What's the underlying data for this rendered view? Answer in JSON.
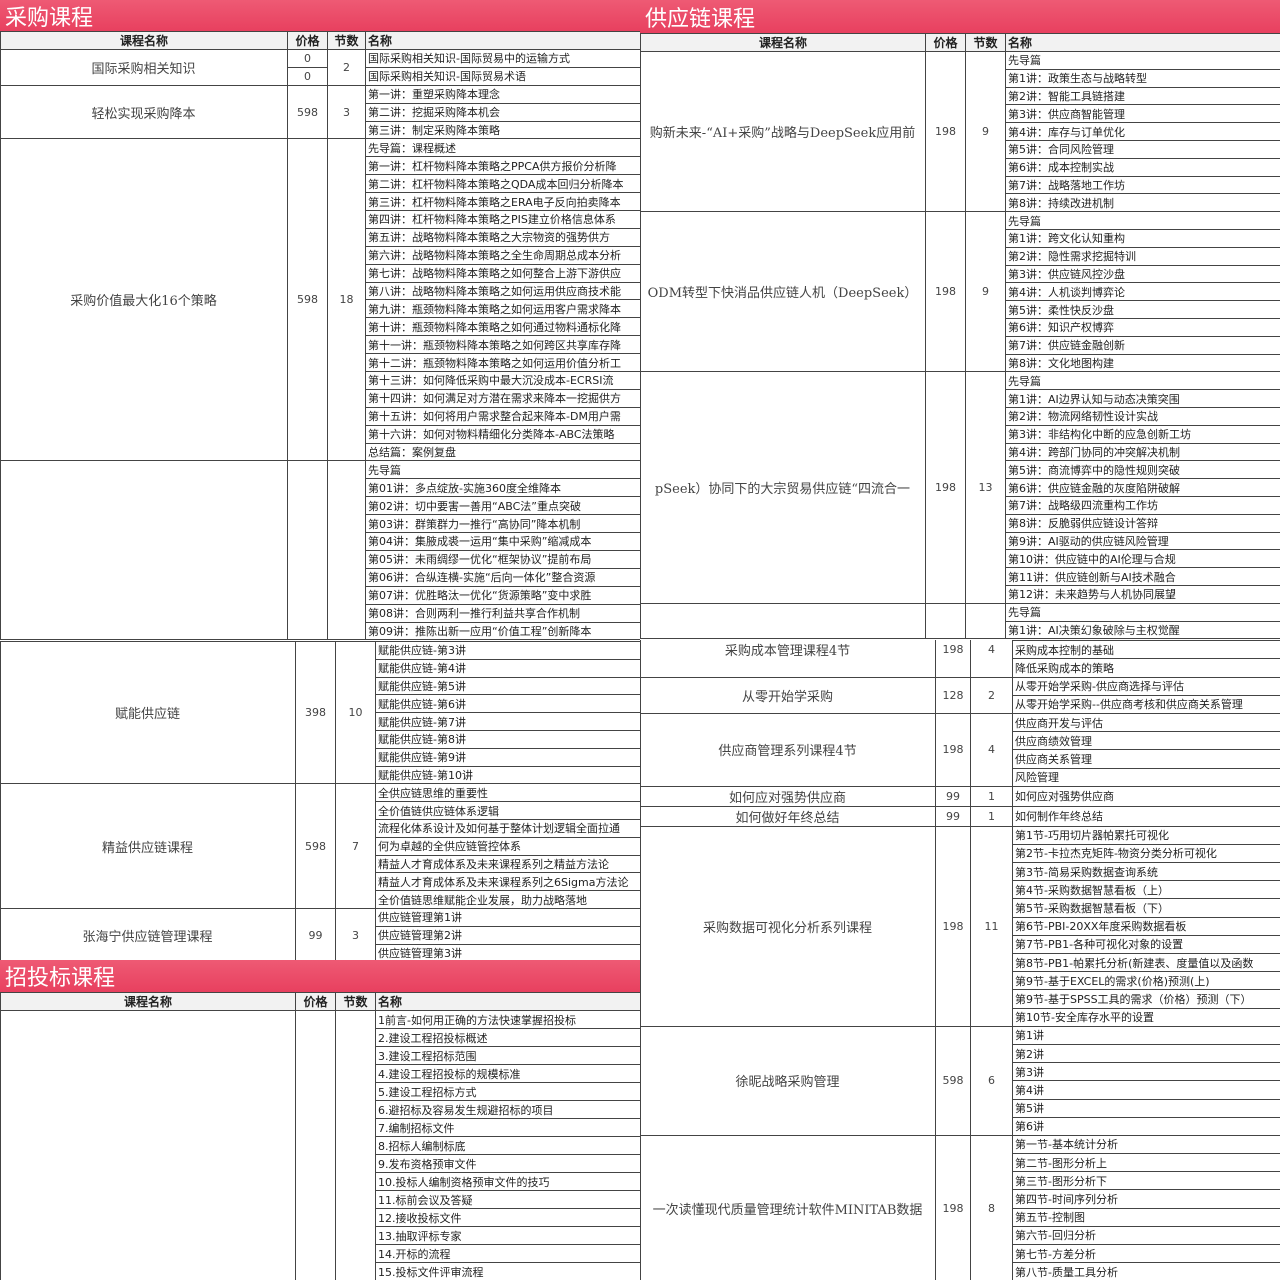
{
  "colors": {
    "title_bar": "#e94a64",
    "title_text": "#ffffff",
    "border": "#444444"
  },
  "headers": {
    "name": "课程名称",
    "price": "价格",
    "count": "节数",
    "title": "名称"
  },
  "panels": {
    "procurement": {
      "title": "采购课程",
      "groups": [
        {
          "name": "国际采购相关知识",
          "prices": [
            "0",
            "0"
          ],
          "count": "2",
          "items": [
            "国际采购相关知识-国际贸易中的运输方式",
            "国际采购相关知识-国际贸易术语"
          ]
        },
        {
          "name": "轻松实现采购降本",
          "price": "598",
          "count": "3",
          "items": [
            "第一讲：重塑采购降本理念",
            "第二讲：挖掘采购降本机会",
            "第三讲：制定采购降本策略"
          ]
        },
        {
          "name": "采购价值最大化16个策略",
          "price": "598",
          "count": "18",
          "items": [
            "先导篇：课程概述",
            "第一讲：杠杆物料降本策略之PPCA供方报价分析降",
            "第二讲：杠杆物料降本策略之QDA成本回归分析降本",
            "第三讲：杠杆物料降本策略之ERA电子反向拍卖降本",
            "第四讲：杠杆物料降本策略之PIS建立价格信息体系",
            "第五讲：战略物料降本策略之大宗物资的强势供方",
            "第六讲：战略物料降本策略之全生命周期总成本分析",
            "第七讲：战略物料降本策略之如何整合上游下游供应",
            "第八讲：战略物料降本策略之如何运用供应商技术能",
            "第九讲：瓶颈物料降本策略之如何运用客户需求降本",
            "第十讲：瓶颈物料降本策略之如何通过物料通标化降",
            "第十一讲：瓶颈物料降本策略之如何跨区共享库存降",
            "第十二讲：瓶颈物料降本策略之如何运用价值分析工",
            "第十三讲：如何降低采购中最大沉没成本-ECRSI流",
            "第十四讲：如何满足对方潜在需求来降本一挖掘供方",
            "第十五讲：如何将用户需求整合起来降本-DM用户需",
            "第十六讲：如何对物料精细化分类降本-ABC法策略",
            "总结篇：案例复盘"
          ]
        },
        {
          "name": "",
          "price": "",
          "count": "",
          "items": [
            "先导篇",
            "第01讲：多点绽放-实施360度全维降本",
            "第02讲：切中要害一善用“ABC法”重点突破",
            "第03讲：群策群力一推行“高协同”降本机制",
            "第04讲：集腋成裘一运用“集中采购”缩减成本",
            "第05讲：未雨绸缪一优化“框架协议”提前布局",
            "第06讲：合纵连横-实施“后向一体化”整合资源",
            "第07讲：优胜略汰一优化“货源策略”变中求胜",
            "第08讲：合则两利一推行利益共享合作机制",
            "第09讲：推陈出新一应用“价值工程”创新降本"
          ]
        }
      ]
    },
    "supply_chain": {
      "title": "供应链课程",
      "groups": [
        {
          "name": "购新未来-“AI+采购”战略与DeepSeek应用前",
          "price": "198",
          "count": "9",
          "items": [
            "先导篇",
            "第1讲：政策生态与战略转型",
            "第2讲：智能工具链搭建",
            "第3讲：供应商智能管理",
            "第4讲：库存与订单优化",
            "第5讲：合同风险管理",
            "第6讲：成本控制实战",
            "第7讲：战略落地工作坊",
            "第8讲：持续改进机制"
          ]
        },
        {
          "name": "ODM转型下快消品供应链人机（DeepSeek）",
          "price": "198",
          "count": "9",
          "items": [
            "先导篇",
            "第1讲：跨文化认知重构",
            "第2讲：隐性需求挖掘特训",
            "第3讲：供应链风控沙盘",
            "第4讲：人机谈判博弈论",
            "第5讲：柔性快反沙盘",
            "第6讲：知识产权博弈",
            "第7讲：供应链金融创新",
            "第8讲：文化地图构建"
          ]
        },
        {
          "name": "pSeek）协同下的大宗贸易供应链“四流合一",
          "price": "198",
          "count": "13",
          "items": [
            "先导篇",
            "第1讲：AI边界认知与动态决策突围",
            "第2讲：物流网络韧性设计实战",
            "第3讲：非结构化中断的应急创新工坊",
            "第4讲：跨部门协同的冲突解决机制",
            "第5讲：商流博弈中的隐性规则突破",
            "第6讲：供应链金融的灰度陷阱破解",
            "第7讲：战略级四流重构工作坊",
            "第8讲：反脆弱供应链设计答辩",
            "第9讲：AI驱动的供应链风险管理",
            "第10讲：供应链中的AI伦理与合规",
            "第11讲：供应链创新与AI技术融合",
            "第12讲：未来趋势与人机协同展望"
          ]
        },
        {
          "name": "",
          "price": "",
          "count": "",
          "items": [
            "先导篇",
            "第1讲：AI决策幻象破除与主权觉醒"
          ]
        }
      ]
    },
    "supply_chain_cont": {
      "groups": [
        {
          "name": "赋能供应链",
          "price": "398",
          "count": "10",
          "items": [
            "赋能供应链-第3讲",
            "赋能供应链-第4讲",
            "赋能供应链-第5讲",
            "赋能供应链-第6讲",
            "赋能供应链-第7讲",
            "赋能供应链-第8讲",
            "赋能供应链-第9讲",
            "赋能供应链-第10讲"
          ]
        },
        {
          "name": "精益供应链课程",
          "price": "598",
          "count": "7",
          "items": [
            "全供应链思维的重要性",
            "全价值链供应链体系逻辑",
            "流程化体系设计及如何基于整体计划逻辑全面拉通",
            "何为卓越的全供应链管控体系",
            "精益人才育成体系及未来课程系列之精益方法论",
            "精益人才育成体系及未来课程系列之6Sigma方法论",
            "全价值链思维赋能企业发展，助力战略落地"
          ]
        },
        {
          "name": "张海宁供应链管理课程",
          "price": "99",
          "count": "3",
          "items": [
            "供应链管理第1讲",
            "供应链管理第2讲",
            "供应链管理第3讲"
          ]
        }
      ]
    },
    "bidding": {
      "title": "招投标课程",
      "groups": [
        {
          "name": "",
          "price": "",
          "count": "",
          "items": [
            "1前言-如何用正确的方法快速掌握招投标",
            "2.建设工程招投标概述",
            "3.建设工程招标范围",
            "4.建设工程招投标的规模标准",
            "5.建设工程招标方式",
            "6.避招标及容易发生规避招标的项目",
            "7.编制招标文件",
            "8.招标人编制标底",
            "9.发布资格预审文件",
            "10.投标人编制资格预审文件的技巧",
            "11.标前会议及答疑",
            "12.接收投标文件",
            "13.抽取评标专家",
            "14.开标的流程",
            "15.投标文件评审流程"
          ]
        }
      ]
    },
    "procurement_cont": {
      "groups": [
        {
          "name": "采购成本管理课程4节",
          "price": "198",
          "count": "4",
          "items": [
            "第1讲：AI决策幻象破除与主权觉醒",
            "采购成本控制的基础",
            "降低采购成本的策略"
          ]
        },
        {
          "name": "从零开始学采购",
          "price": "128",
          "count": "2",
          "items": [
            "从零开始学采购-供应商选择与评估",
            "从零开始学采购--供应商考核和供应商关系管理"
          ]
        },
        {
          "name": "供应商管理系列课程4节",
          "price": "198",
          "count": "4",
          "items": [
            "供应商开发与评估",
            "供应商绩效管理",
            "供应商关系管理",
            "风险管理"
          ]
        },
        {
          "name": "如何应对强势供应商",
          "price": "99",
          "count": "1",
          "items": [
            "如何应对强势供应商"
          ]
        },
        {
          "name": "如何做好年终总结",
          "price": "99",
          "count": "1",
          "items": [
            "如何制作年终总结"
          ]
        },
        {
          "name": "采购数据可视化分析系列课程",
          "price": "198",
          "count": "11",
          "items": [
            "第1节-巧用切片器帕累托可视化",
            "第2节-卡拉杰克矩阵-物资分类分析可视化",
            "第3节-简易采购数据查询系统",
            "第4节-采购数据智慧看板（上）",
            "第5节-采购数据智慧看板（下）",
            "第6节-PBI-20XX年度采购数据看板",
            "第7节-PB1-各种可视化对象的设置",
            "第8节-PB1-帕累托分析(新建表、度量值以及函数",
            "第9节-基于EXCEL的需求(价格)预测(上)",
            "第9节-基于SPSS工具的需求（价格）预测（下）",
            "第10节-安全库存水平的设置"
          ]
        },
        {
          "name": "徐昵战略采购管理",
          "price": "598",
          "count": "6",
          "items": [
            "第1讲",
            "第2讲",
            "第3讲",
            "第4讲",
            "第5讲",
            "第6讲"
          ]
        },
        {
          "name": "一次读懂现代质量管理统计软件MINITAB数据",
          "price": "198",
          "count": "8",
          "items": [
            "第一节-基本统计分析",
            "第二节-图形分析上",
            "第三节-图形分析下",
            "第四节-时间序列分析",
            "第五节-控制图",
            "第六节-回归分析",
            "第七节-方差分析",
            "第八节-质量工具分析"
          ]
        }
      ]
    }
  }
}
